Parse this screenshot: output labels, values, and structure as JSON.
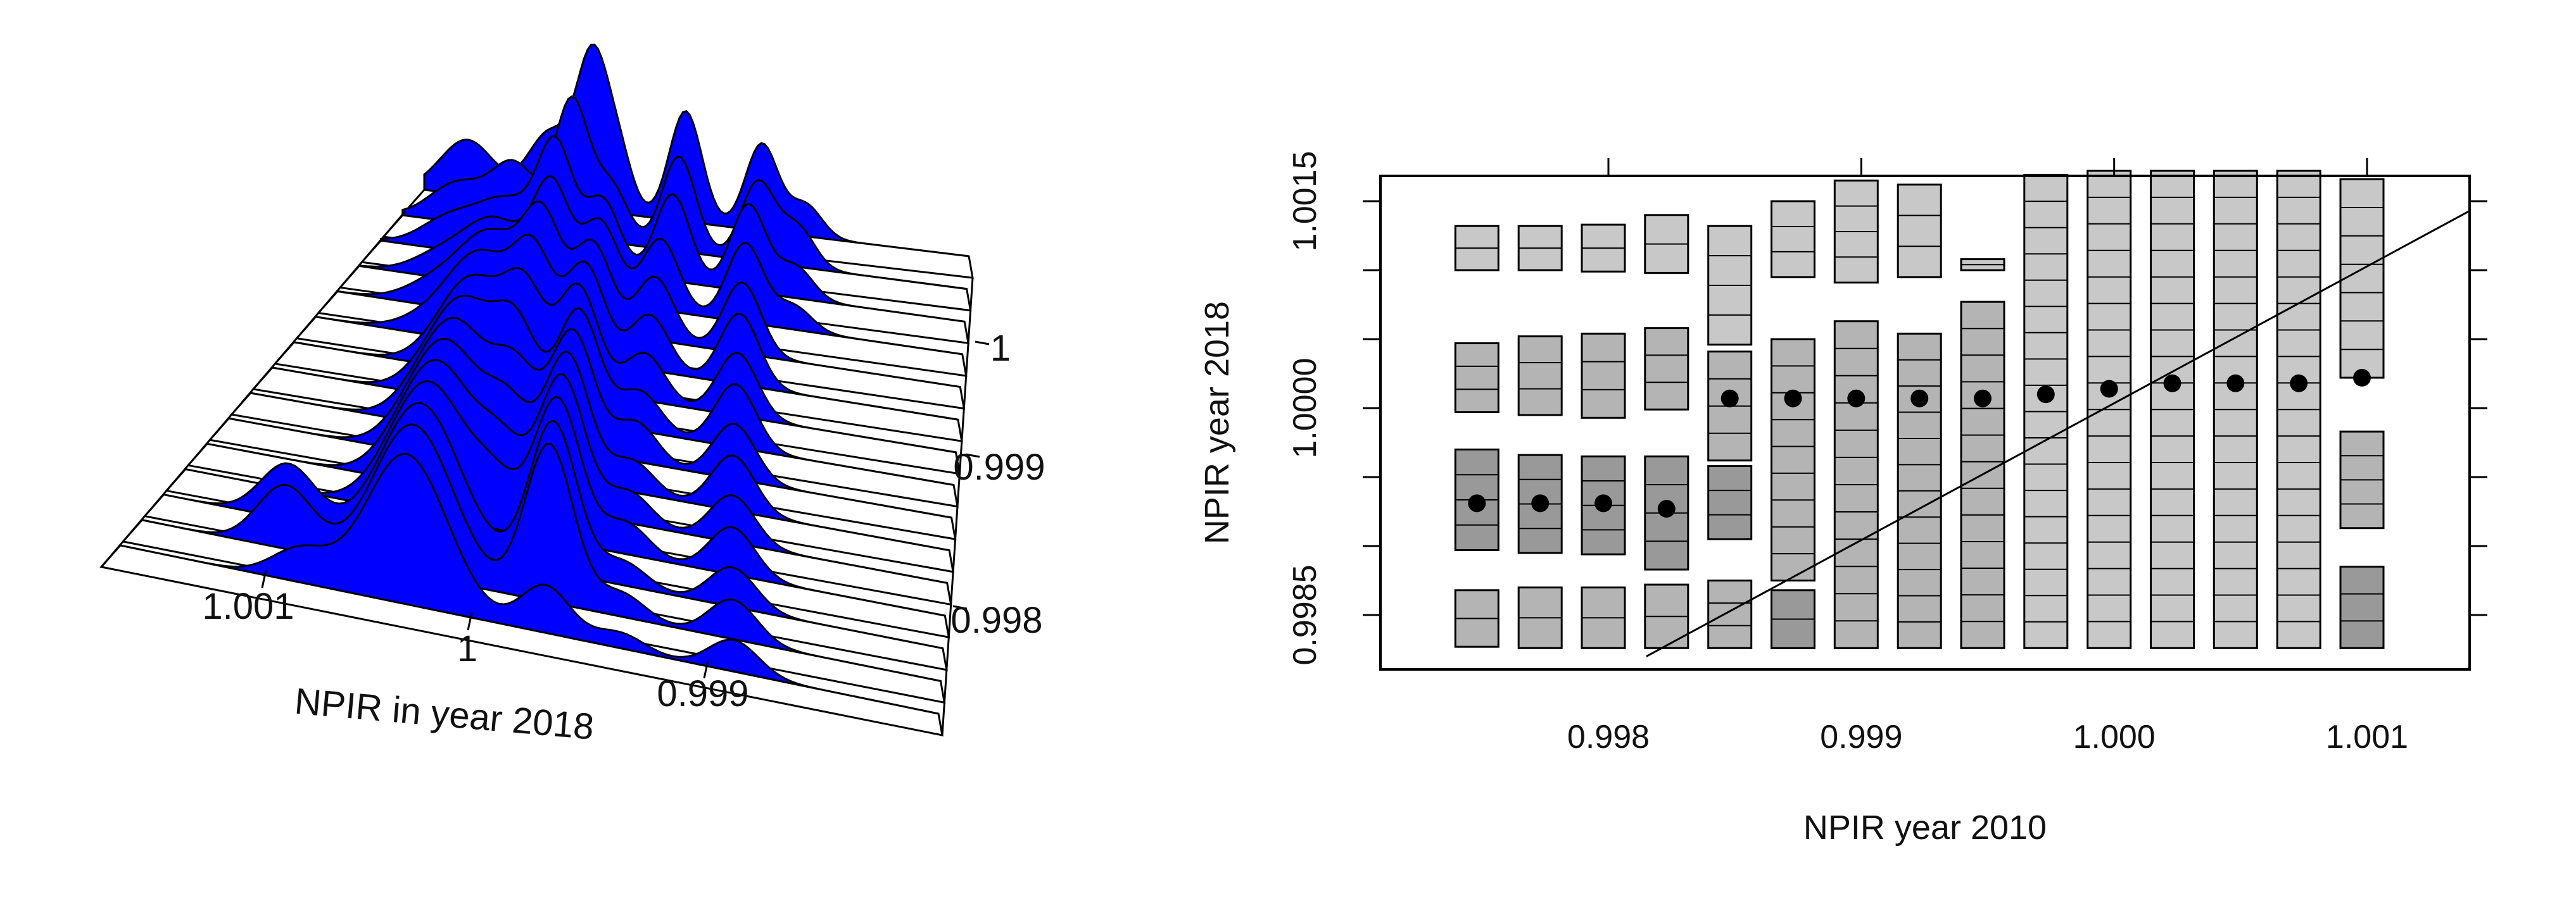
{
  "colors": {
    "ridge_fill": "#0000ff",
    "box_light": "#c8c8c8",
    "box_mid": "#b4b4b4",
    "box_dark": "#999999",
    "line": "#000000"
  },
  "chart_data": [
    {
      "type": "area",
      "title": "",
      "xlabel": "NPIR in year 2018",
      "x_ticks": [
        "1.001",
        "1",
        "0.999"
      ],
      "depth_ticks": [
        "1",
        "0.999",
        "0.998"
      ],
      "grid": false,
      "n_ridges": 15,
      "ridges": [
        {
          "peaks": [
            [
              0.08,
              0.35,
              0.05
            ],
            [
              0.23,
              0.45,
              0.04
            ],
            [
              0.31,
              0.95,
              0.03
            ],
            [
              0.36,
              0.3,
              0.025
            ],
            [
              0.48,
              0.7,
              0.03
            ],
            [
              0.62,
              0.55,
              0.03
            ],
            [
              0.7,
              0.2,
              0.03
            ]
          ]
        },
        {
          "peaks": [
            [
              0.1,
              0.25,
              0.05
            ],
            [
              0.2,
              0.4,
              0.04
            ],
            [
              0.3,
              0.85,
              0.03
            ],
            [
              0.37,
              0.35,
              0.03
            ],
            [
              0.49,
              0.6,
              0.03
            ],
            [
              0.63,
              0.5,
              0.03
            ],
            [
              0.7,
              0.25,
              0.03
            ]
          ]
        },
        {
          "peaks": [
            [
              0.12,
              0.2,
              0.05
            ],
            [
              0.22,
              0.35,
              0.05
            ],
            [
              0.3,
              0.7,
              0.03
            ],
            [
              0.38,
              0.45,
              0.03
            ],
            [
              0.5,
              0.55,
              0.03
            ],
            [
              0.63,
              0.55,
              0.03
            ],
            [
              0.71,
              0.2,
              0.03
            ]
          ]
        },
        {
          "peaks": [
            [
              0.14,
              0.15,
              0.05
            ],
            [
              0.23,
              0.4,
              0.05
            ],
            [
              0.32,
              0.65,
              0.03
            ],
            [
              0.4,
              0.5,
              0.03
            ],
            [
              0.5,
              0.45,
              0.03
            ],
            [
              0.64,
              0.5,
              0.03
            ],
            [
              0.72,
              0.15,
              0.03
            ]
          ]
        },
        {
          "peaks": [
            [
              0.16,
              0.15,
              0.05
            ],
            [
              0.25,
              0.5,
              0.05
            ],
            [
              0.33,
              0.6,
              0.03
            ],
            [
              0.41,
              0.55,
              0.03
            ],
            [
              0.51,
              0.4,
              0.03
            ],
            [
              0.65,
              0.45,
              0.03
            ]
          ]
        },
        {
          "peaks": [
            [
              0.18,
              0.1,
              0.05
            ],
            [
              0.26,
              0.55,
              0.05
            ],
            [
              0.34,
              0.55,
              0.03
            ],
            [
              0.42,
              0.6,
              0.03
            ],
            [
              0.52,
              0.35,
              0.03
            ],
            [
              0.66,
              0.45,
              0.03
            ]
          ]
        },
        {
          "peaks": [
            [
              0.27,
              0.6,
              0.05
            ],
            [
              0.35,
              0.5,
              0.03
            ],
            [
              0.43,
              0.65,
              0.03
            ],
            [
              0.53,
              0.3,
              0.03
            ],
            [
              0.67,
              0.4,
              0.03
            ]
          ]
        },
        {
          "peaks": [
            [
              0.28,
              0.65,
              0.05
            ],
            [
              0.36,
              0.45,
              0.03
            ],
            [
              0.45,
              0.7,
              0.03
            ],
            [
              0.54,
              0.25,
              0.03
            ],
            [
              0.68,
              0.4,
              0.03
            ]
          ]
        },
        {
          "peaks": [
            [
              0.29,
              0.7,
              0.05
            ],
            [
              0.38,
              0.4,
              0.03
            ],
            [
              0.46,
              0.75,
              0.03
            ],
            [
              0.55,
              0.25,
              0.03
            ],
            [
              0.69,
              0.35,
              0.03
            ]
          ]
        },
        {
          "peaks": [
            [
              0.3,
              0.75,
              0.05
            ],
            [
              0.39,
              0.35,
              0.03
            ],
            [
              0.47,
              0.8,
              0.03
            ],
            [
              0.56,
              0.2,
              0.03
            ],
            [
              0.7,
              0.35,
              0.03
            ]
          ]
        },
        {
          "peaks": [
            [
              0.31,
              0.8,
              0.05
            ],
            [
              0.4,
              0.3,
              0.03
            ],
            [
              0.48,
              0.85,
              0.03
            ],
            [
              0.57,
              0.2,
              0.03
            ],
            [
              0.71,
              0.3,
              0.03
            ]
          ]
        },
        {
          "peaks": [
            [
              0.32,
              0.85,
              0.05
            ],
            [
              0.41,
              0.25,
              0.03
            ],
            [
              0.49,
              0.9,
              0.03
            ],
            [
              0.58,
              0.2,
              0.03
            ],
            [
              0.72,
              0.3,
              0.03
            ]
          ]
        },
        {
          "peaks": [
            [
              0.16,
              0.35,
              0.035
            ],
            [
              0.33,
              0.9,
              0.05
            ],
            [
              0.5,
              0.95,
              0.03
            ],
            [
              0.59,
              0.15,
              0.03
            ],
            [
              0.73,
              0.25,
              0.03
            ]
          ]
        },
        {
          "peaks": [
            [
              0.18,
              0.4,
              0.035
            ],
            [
              0.34,
              0.95,
              0.05
            ],
            [
              0.51,
              1.0,
              0.03
            ],
            [
              0.6,
              0.15,
              0.03
            ],
            [
              0.74,
              0.25,
              0.03
            ]
          ]
        },
        {
          "peaks": [
            [
              0.22,
              0.2,
              0.035
            ],
            [
              0.35,
              0.95,
              0.05
            ],
            [
              0.52,
              0.3,
              0.03
            ],
            [
              0.61,
              0.1,
              0.03
            ],
            [
              0.75,
              0.2,
              0.03
            ]
          ]
        }
      ]
    },
    {
      "type": "heatmap",
      "title": "",
      "xlabel": "NPIR year 2010",
      "ylabel": "NPIR year 2018",
      "xlim": [
        0.99707,
        0.99638
      ],
      "ylim": [
        0.99835,
        1.00172
      ],
      "xticks": [
        0.998,
        0.999,
        1.0,
        1.001
      ],
      "xtick_labels": [
        "0.998",
        "0.999",
        "1.000",
        "1.001"
      ],
      "yticks": [
        0.9985,
        0.999,
        0.9995,
        1.0,
        1.0005,
        1.001,
        1.0015
      ],
      "ytick_labels": [
        "0.9985",
        "",
        "",
        "1.0000",
        "",
        "",
        "1.0015"
      ],
      "grid": false,
      "medians": [
        {
          "x": 0.99748,
          "y": 0.99931
        },
        {
          "x": 0.99773,
          "y": 0.99931
        },
        {
          "x": 0.99798,
          "y": 0.99931
        },
        {
          "x": 0.99823,
          "y": 0.99927
        },
        {
          "x": 0.99848,
          "y": 1.00007
        },
        {
          "x": 0.99873,
          "y": 1.00007
        },
        {
          "x": 0.99898,
          "y": 1.00007
        },
        {
          "x": 0.99923,
          "y": 1.00007
        },
        {
          "x": 0.99948,
          "y": 1.00007
        },
        {
          "x": 0.99973,
          "y": 1.0001
        },
        {
          "x": 0.99998,
          "y": 1.00014
        },
        {
          "x": 1.00023,
          "y": 1.00018
        },
        {
          "x": 1.00048,
          "y": 1.00018
        },
        {
          "x": 1.00073,
          "y": 1.00018
        },
        {
          "x": 1.00098,
          "y": 1.00022
        }
      ],
      "reference_line": {
        "x": [
          0.99815,
          1.0014
        ],
        "y": [
          0.9982,
          1.00143
        ]
      },
      "quantile_boxes": [
        {
          "x": 0.99748,
          "spans": [
            [
              1.00132,
              1.001
            ],
            [
              1.00047,
              0.99997
            ],
            [
              0.9997,
              0.99897
            ],
            [
              0.99868,
              0.99827
            ]
          ]
        },
        {
          "x": 0.99773,
          "spans": [
            [
              1.00132,
              1.001
            ],
            [
              1.00052,
              0.99995
            ],
            [
              0.99966,
              0.99895
            ],
            [
              0.9987,
              0.99826
            ]
          ]
        },
        {
          "x": 0.99798,
          "spans": [
            [
              1.00133,
              1.00099
            ],
            [
              1.00054,
              0.99993
            ],
            [
              0.99965,
              0.99894
            ],
            [
              0.9987,
              0.99826
            ]
          ]
        },
        {
          "x": 0.99823,
          "spans": [
            [
              1.0014,
              1.00098
            ],
            [
              1.00058,
              0.99999
            ],
            [
              0.99965,
              0.99883
            ],
            [
              0.99872,
              0.99826
            ]
          ]
        },
        {
          "x": 0.99848,
          "spans": [
            [
              1.00132,
              1.00046
            ],
            [
              1.00041,
              0.99962
            ],
            [
              0.99958,
              0.99905
            ],
            [
              0.99875,
              0.99826
            ]
          ]
        },
        {
          "x": 0.99873,
          "spans": [
            [
              1.0015,
              1.00095
            ],
            [
              1.0005,
              0.99875
            ],
            [
              0.99868,
              0.99826
            ]
          ]
        },
        {
          "x": 0.99898,
          "spans": [
            [
              1.00165,
              1.00091
            ],
            [
              1.00063,
              0.99826
            ]
          ]
        },
        {
          "x": 0.99923,
          "spans": [
            [
              1.00162,
              1.00095
            ],
            [
              1.00054,
              0.99826
            ]
          ]
        },
        {
          "x": 0.99948,
          "spans": [
            [
              1.00108,
              1.001
            ],
            [
              1.00077,
              0.99826
            ]
          ]
        },
        {
          "x": 0.99973,
          "spans": [
            [
              1.00169,
              0.99826
            ]
          ]
        },
        {
          "x": 0.99998,
          "spans": [
            [
              1.00172,
              0.99826
            ]
          ]
        },
        {
          "x": 1.00023,
          "spans": [
            [
              1.00172,
              0.99826
            ]
          ]
        },
        {
          "x": 1.00048,
          "spans": [
            [
              1.00172,
              0.99826
            ]
          ]
        },
        {
          "x": 1.00073,
          "spans": [
            [
              1.00172,
              0.99826
            ]
          ]
        },
        {
          "x": 1.00098,
          "spans": [
            [
              1.00166,
              1.00022
            ],
            [
              0.99983,
              0.99913
            ],
            [
              0.99885,
              0.99826
            ]
          ]
        }
      ]
    }
  ]
}
